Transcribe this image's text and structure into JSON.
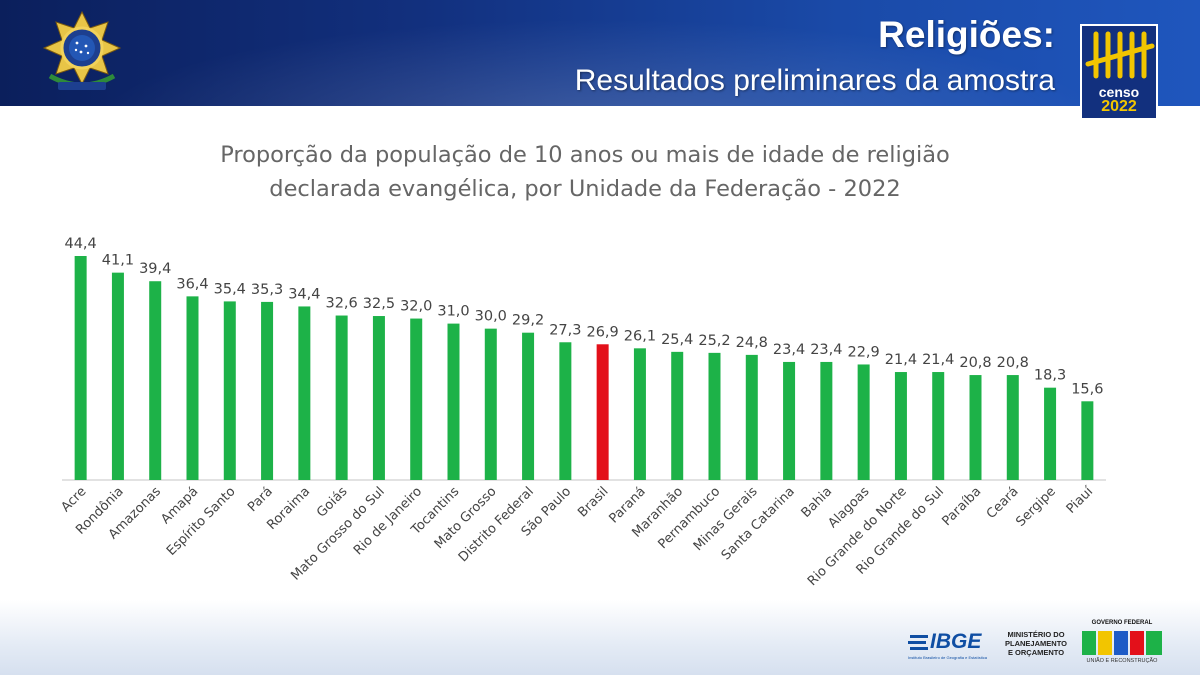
{
  "header": {
    "title": "Religiões:",
    "subtitle": "Resultados preliminares da amostra",
    "background": "#12307e"
  },
  "logos": {
    "emblem_icon": "brazil-coat-of-arms-icon",
    "censo_word": "censo",
    "censo_year": "2022",
    "ibge": "IBGE",
    "ibge_sub": "Instituto Brasileiro de Geografia e Estatística",
    "ministry_lines": [
      "MINISTÉRIO DO",
      "PLANEJAMENTO",
      "E ORÇAMENTO"
    ],
    "gov_top": "GOVERNO FEDERAL",
    "gov_bottom": "UNIÃO E RECONSTRUÇÃO"
  },
  "chart_data": {
    "type": "bar",
    "title_lines": [
      "Proporção da população de 10 anos ou mais de idade de religião",
      "declarada evangélica, por Unidade da Federação - 2022"
    ],
    "categories": [
      "Acre",
      "Rondônia",
      "Amazonas",
      "Amapá",
      "Espírito Santo",
      "Pará",
      "Roraima",
      "Goiás",
      "Mato Grosso do Sul",
      "Rio de Janeiro",
      "Tocantins",
      "Mato Grosso",
      "Distrito Federal",
      "São Paulo",
      "Brasil",
      "Paraná",
      "Maranhão",
      "Pernambuco",
      "Minas Gerais",
      "Santa Catarina",
      "Bahia",
      "Alagoas",
      "Rio Grande do Norte",
      "Rio Grande do Sul",
      "Paraíba",
      "Ceará",
      "Sergipe",
      "Piauí"
    ],
    "values": [
      44.4,
      41.1,
      39.4,
      36.4,
      35.4,
      35.3,
      34.4,
      32.6,
      32.5,
      32.0,
      31.0,
      30.0,
      29.2,
      27.3,
      26.9,
      26.1,
      25.4,
      25.2,
      24.8,
      23.4,
      23.4,
      22.9,
      21.4,
      21.4,
      20.8,
      20.8,
      18.3,
      15.6
    ],
    "labels": [
      "44,4",
      "41,1",
      "39,4",
      "36,4",
      "35,4",
      "35,3",
      "34,4",
      "32,6",
      "32,5",
      "32,0",
      "31,0",
      "30,0",
      "29,2",
      "27,3",
      "26,9",
      "26,1",
      "25,4",
      "25,2",
      "24,8",
      "23,4",
      "23,4",
      "22,9",
      "21,4",
      "21,4",
      "20,8",
      "20,8",
      "18,3",
      "15,6"
    ],
    "highlight": "Brasil",
    "colors": {
      "bar": "#1db248",
      "highlight": "#e3101a",
      "text": "#444444",
      "axis": "#d9d9d9"
    },
    "ylim": [
      0,
      44.4
    ],
    "grid": false,
    "legend": "none"
  }
}
